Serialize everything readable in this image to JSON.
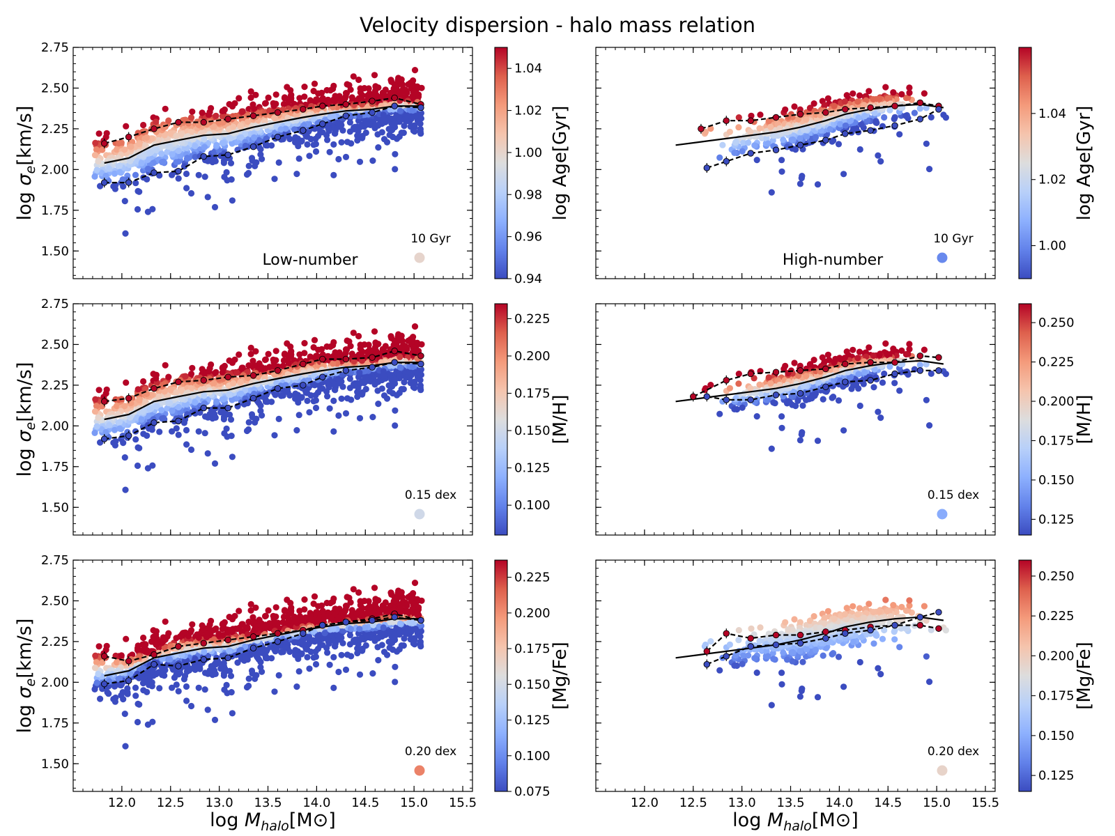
{
  "title": "Velocity dispersion - halo mass relation",
  "xlabel": "log M_halo [M⊙]",
  "xlabel_parts": {
    "prefix": "log",
    "symbol": "M",
    "subscript": "halo",
    "unit": "[M⊙]"
  },
  "ylabel": "log σ_e [km/s]",
  "ylabel_parts": {
    "prefix": "log",
    "symbol": "σ",
    "subscript": "e",
    "unit": "[km/s]"
  },
  "colors": {
    "cold": "#3b4cc0",
    "neutral": "#dddddd",
    "warm": "#b40426",
    "line": "#000000"
  },
  "chart_data": {
    "type": "scatter",
    "grid": false,
    "xlim": [
      11.5,
      15.6
    ],
    "ylim": [
      1.33,
      2.75
    ],
    "x_ticks": [
      "12.0",
      "12.5",
      "13.0",
      "13.5",
      "14.0",
      "14.5",
      "15.0",
      "15.5"
    ],
    "y_ticks": [
      "1.50",
      "1.75",
      "2.00",
      "2.25",
      "2.50",
      "2.75"
    ],
    "columns": [
      "Low-number",
      "High-number"
    ],
    "median": {
      "low": {
        "x": [
          11.82,
          12.07,
          12.33,
          12.58,
          12.84,
          13.09,
          13.35,
          13.6,
          13.86,
          14.06,
          14.3,
          14.57,
          14.8,
          15.07
        ],
        "y": [
          2.04,
          2.07,
          2.15,
          2.18,
          2.21,
          2.22,
          2.26,
          2.29,
          2.32,
          2.34,
          2.36,
          2.37,
          2.39,
          2.39
        ]
      },
      "high": {
        "x": [
          12.32,
          12.58,
          12.84,
          13.09,
          13.35,
          13.6,
          13.86,
          14.06,
          14.32,
          14.57,
          14.83,
          15.07
        ],
        "y": [
          2.15,
          2.17,
          2.19,
          2.21,
          2.23,
          2.26,
          2.3,
          2.34,
          2.37,
          2.39,
          2.4,
          2.38
        ]
      }
    },
    "panels": [
      {
        "id": "age-low",
        "row": 0,
        "col": 0,
        "property": "log Age[Gyr]",
        "sample": "Low-number",
        "clim": [
          0.94,
          1.05
        ],
        "cticks": [
          "0.94",
          "0.96",
          "0.98",
          "1.00",
          "1.02",
          "1.04"
        ],
        "marker_label": "10 Gyr",
        "marker_value": 1.0,
        "upper": {
          "x": [
            11.82,
            12.07,
            12.33,
            12.58,
            12.84,
            13.09,
            13.35,
            13.6,
            13.86,
            14.06,
            14.3,
            14.57,
            14.8,
            15.07
          ],
          "y": [
            2.16,
            2.2,
            2.25,
            2.29,
            2.29,
            2.31,
            2.33,
            2.35,
            2.37,
            2.39,
            2.4,
            2.42,
            2.44,
            2.4
          ]
        },
        "lower": {
          "x": [
            11.82,
            12.07,
            12.33,
            12.58,
            12.84,
            13.09,
            13.35,
            13.6,
            13.86,
            14.06,
            14.3,
            14.57,
            14.8,
            15.07
          ],
          "y": [
            1.92,
            1.92,
            1.98,
            1.99,
            2.08,
            2.09,
            2.14,
            2.2,
            2.24,
            2.28,
            2.33,
            2.35,
            2.39,
            2.38
          ]
        }
      },
      {
        "id": "age-high",
        "row": 0,
        "col": 1,
        "property": "log Age[Gyr]",
        "sample": "High-number",
        "clim": [
          0.99,
          1.06
        ],
        "cticks": [
          "1.00",
          "1.02",
          "1.04"
        ],
        "marker_label": "10 Gyr",
        "marker_value": 1.0,
        "upper": {
          "x": [
            12.58,
            12.84,
            13.09,
            13.35,
            13.6,
            13.86,
            14.06,
            14.32,
            14.57,
            14.83,
            15.02
          ],
          "y": [
            2.25,
            2.3,
            2.3,
            2.32,
            2.34,
            2.35,
            2.37,
            2.38,
            2.39,
            2.41,
            2.39
          ]
        },
        "lower": {
          "x": [
            12.64,
            12.84,
            13.09,
            13.35,
            13.6,
            13.86,
            14.06,
            14.32,
            14.57,
            14.83,
            15.02
          ],
          "y": [
            2.01,
            2.05,
            2.1,
            2.12,
            2.15,
            2.18,
            2.22,
            2.24,
            2.27,
            2.31,
            2.37
          ]
        }
      },
      {
        "id": "mh-low",
        "row": 1,
        "col": 0,
        "property": "[M/H]",
        "sample": "Low-number",
        "clim": [
          0.08,
          0.235
        ],
        "cticks": [
          "0.100",
          "0.125",
          "0.150",
          "0.175",
          "0.200",
          "0.225"
        ],
        "marker_label": "0.15 dex",
        "marker_value": 0.15,
        "upper": {
          "x": [
            11.82,
            12.07,
            12.33,
            12.58,
            12.84,
            13.09,
            13.35,
            13.6,
            13.86,
            14.06,
            14.3,
            14.57,
            14.8,
            15.07
          ],
          "y": [
            2.15,
            2.17,
            2.23,
            2.27,
            2.28,
            2.3,
            2.31,
            2.34,
            2.38,
            2.41,
            2.41,
            2.42,
            2.46,
            2.43
          ]
        },
        "lower": {
          "x": [
            11.82,
            12.07,
            12.33,
            12.58,
            12.84,
            13.09,
            13.35,
            13.6,
            13.86,
            14.06,
            14.3,
            14.57,
            14.8,
            15.07
          ],
          "y": [
            1.92,
            1.94,
            2.02,
            2.03,
            2.11,
            2.11,
            2.17,
            2.23,
            2.25,
            2.3,
            2.34,
            2.36,
            2.39,
            2.38
          ]
        }
      },
      {
        "id": "mh-high",
        "row": 1,
        "col": 1,
        "property": "[M/H]",
        "sample": "High-number",
        "clim": [
          0.115,
          0.262
        ],
        "cticks": [
          "0.125",
          "0.150",
          "0.175",
          "0.200",
          "0.225",
          "0.250"
        ],
        "marker_label": "0.15 dex",
        "marker_value": 0.15,
        "upper": {
          "x": [
            12.5,
            12.84,
            13.09,
            13.35,
            13.6,
            13.86,
            14.06,
            14.32,
            14.57,
            14.83,
            15.02
          ],
          "y": [
            2.18,
            2.28,
            2.32,
            2.33,
            2.34,
            2.35,
            2.38,
            2.39,
            2.39,
            2.43,
            2.42
          ]
        },
        "lower": {
          "x": [
            12.64,
            12.84,
            13.09,
            13.35,
            13.6,
            13.86,
            14.06,
            14.32,
            14.57,
            14.83,
            15.02
          ],
          "y": [
            2.18,
            2.16,
            2.16,
            2.19,
            2.2,
            2.24,
            2.27,
            2.28,
            2.32,
            2.34,
            2.34
          ]
        }
      },
      {
        "id": "mgfe-low",
        "row": 2,
        "col": 0,
        "property": "[Mg/Fe]",
        "sample": "Low-number",
        "clim": [
          0.075,
          0.237
        ],
        "cticks": [
          "0.075",
          "0.100",
          "0.125",
          "0.150",
          "0.175",
          "0.200",
          "0.225"
        ],
        "marker_label": "0.20 dex",
        "marker_value": 0.205,
        "upper": {
          "x": [
            11.82,
            12.07,
            12.33,
            12.58,
            12.84,
            13.09,
            13.35,
            13.6,
            13.86,
            14.06,
            14.3,
            14.57,
            14.8,
            15.07
          ],
          "y": [
            2.16,
            2.13,
            2.17,
            2.22,
            2.24,
            2.26,
            2.28,
            2.3,
            2.32,
            2.35,
            2.37,
            2.39,
            2.42,
            2.38
          ]
        },
        "lower": {
          "x": [
            11.82,
            12.07,
            12.33,
            12.58,
            12.84,
            13.09,
            13.35,
            13.6,
            13.86,
            14.06,
            14.3,
            14.57,
            14.8,
            15.07
          ],
          "y": [
            1.99,
            2.01,
            2.11,
            2.1,
            2.14,
            2.15,
            2.21,
            2.25,
            2.3,
            2.35,
            2.37,
            2.38,
            2.4,
            2.38
          ]
        }
      },
      {
        "id": "mgfe-high",
        "row": 2,
        "col": 1,
        "property": "[Mg/Fe]",
        "sample": "High-number",
        "clim": [
          0.115,
          0.26
        ],
        "cticks": [
          "0.125",
          "0.150",
          "0.175",
          "0.200",
          "0.225",
          "0.250"
        ],
        "marker_label": "0.20 dex",
        "marker_value": 0.195,
        "upper": {
          "x": [
            12.64,
            12.84,
            13.09,
            13.35,
            13.6,
            13.86,
            14.06,
            14.32,
            14.57,
            14.83,
            15.02
          ],
          "y": [
            2.19,
            2.3,
            2.27,
            2.29,
            2.29,
            2.31,
            2.32,
            2.34,
            2.35,
            2.35,
            2.33
          ]
        },
        "lower": {
          "x": [
            12.64,
            12.84,
            13.09,
            13.35,
            13.6,
            13.86,
            14.06,
            14.32,
            14.57,
            14.83,
            15.02
          ],
          "y": [
            2.11,
            2.16,
            2.22,
            2.23,
            2.24,
            2.27,
            2.3,
            2.32,
            2.35,
            2.4,
            2.43
          ]
        }
      }
    ]
  }
}
